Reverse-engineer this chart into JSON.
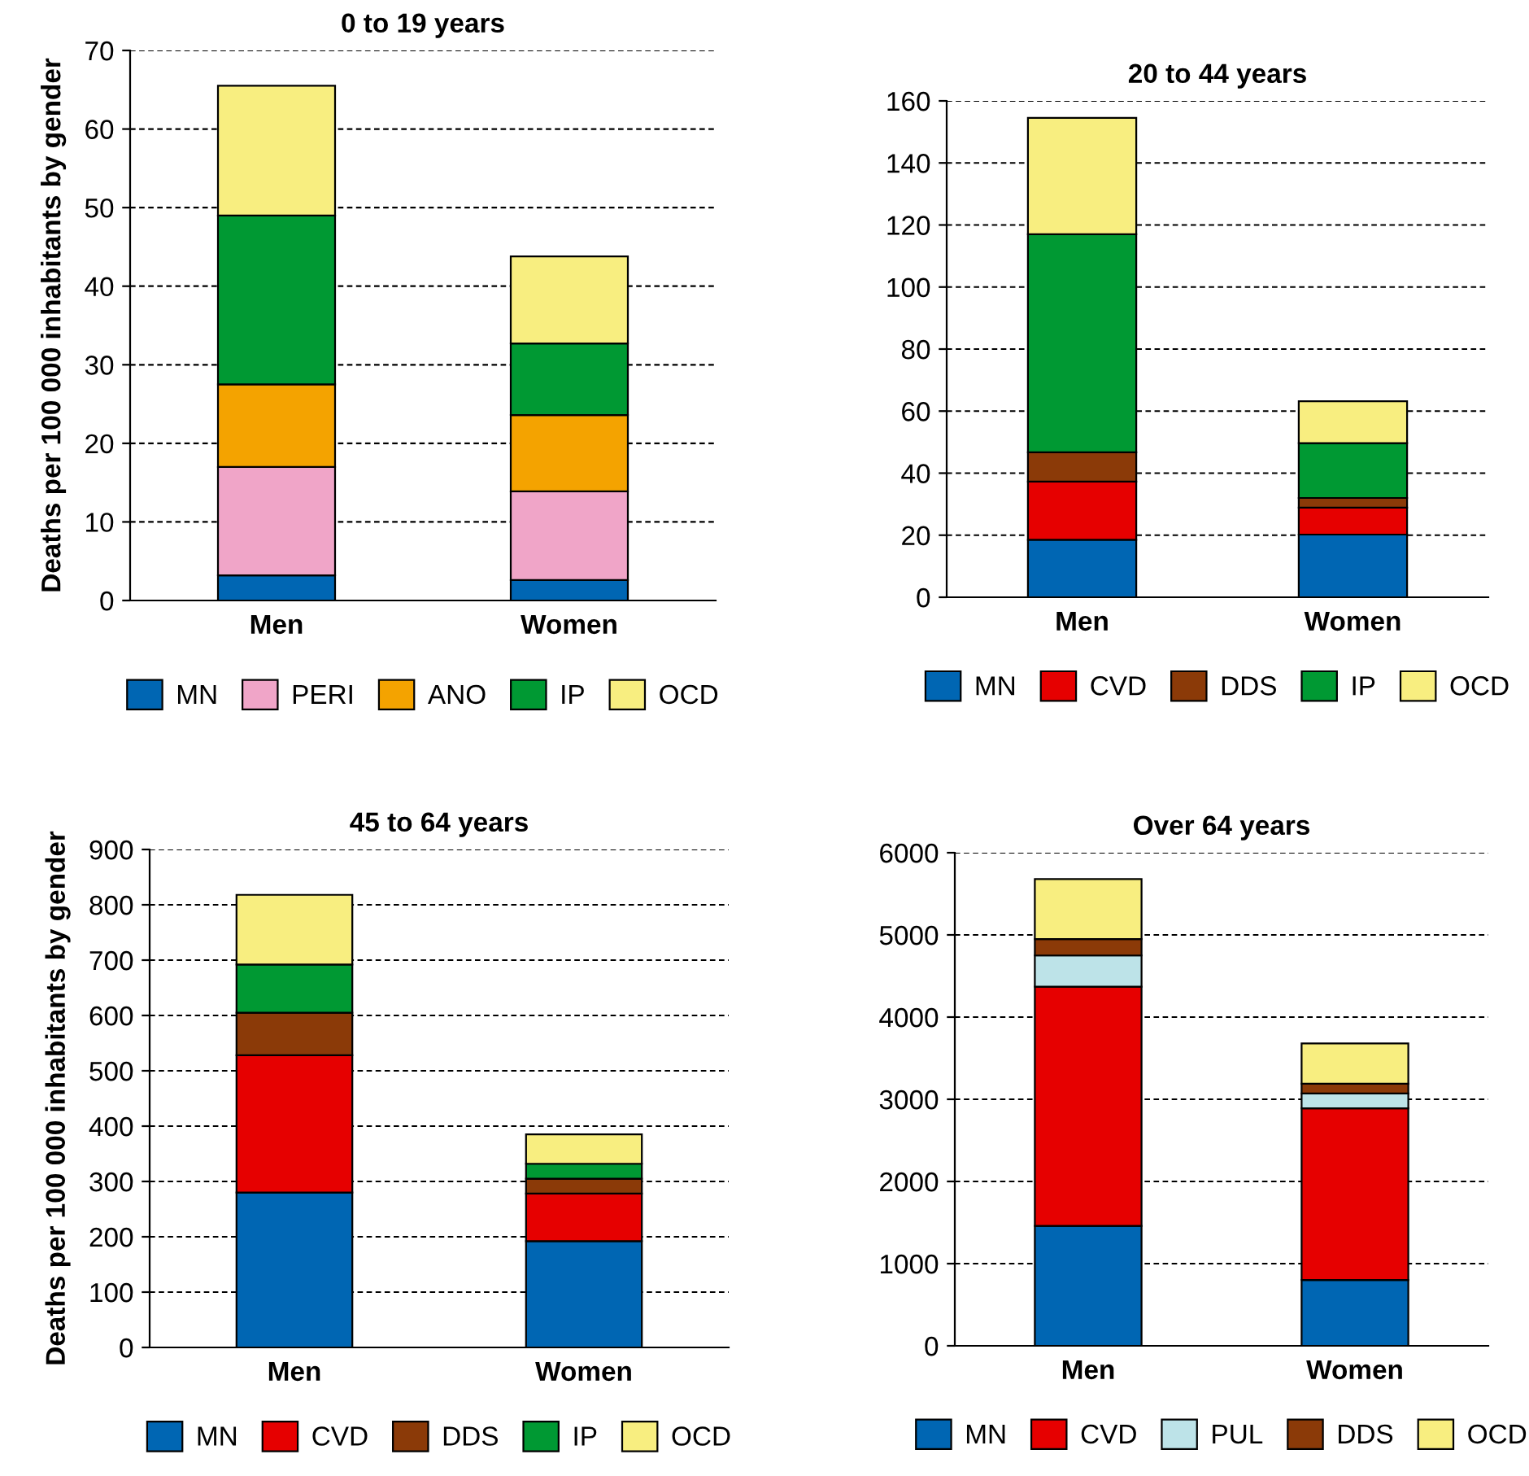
{
  "chart_data": [
    {
      "type": "bar",
      "stacked": true,
      "title": "0 to 19 years",
      "ylabel": "Deaths per 100 000 inhabitants by gender",
      "categories": [
        "Men",
        "Women"
      ],
      "ylim": [
        0,
        70
      ],
      "yticks": [
        0,
        10,
        20,
        30,
        40,
        50,
        60,
        70
      ],
      "grid": "y",
      "legend": "bottom",
      "series": [
        {
          "name": "MN",
          "color": "#0066b3",
          "values": [
            3.2,
            2.6
          ]
        },
        {
          "name": "PERI",
          "color": "#f0a5c8",
          "values": [
            13.8,
            11.3
          ]
        },
        {
          "name": "ANO",
          "color": "#f4a300",
          "values": [
            10.5,
            9.7
          ]
        },
        {
          "name": "IP",
          "color": "#009933",
          "values": [
            21.5,
            9.1
          ]
        },
        {
          "name": "OCD",
          "color": "#f8ee80",
          "values": [
            16.5,
            11.1
          ]
        }
      ]
    },
    {
      "type": "bar",
      "stacked": true,
      "title": "20 to 44 years",
      "categories": [
        "Men",
        "Women"
      ],
      "ylim": [
        0,
        160
      ],
      "yticks": [
        0,
        20,
        40,
        60,
        80,
        100,
        120,
        140,
        160
      ],
      "grid": "y",
      "legend": "bottom",
      "series": [
        {
          "name": "MN",
          "color": "#0066b3",
          "values": [
            18.5,
            20.2
          ]
        },
        {
          "name": "CVD",
          "color": "#e60000",
          "values": [
            18.8,
            8.7
          ]
        },
        {
          "name": "DDS",
          "color": "#8b3a08",
          "values": [
            9.4,
            3.1
          ]
        },
        {
          "name": "IP",
          "color": "#009933",
          "values": [
            70.3,
            17.7
          ]
        },
        {
          "name": "OCD",
          "color": "#f8ee80",
          "values": [
            37.5,
            13.5
          ]
        }
      ]
    },
    {
      "type": "bar",
      "stacked": true,
      "title": "45 to 64 years",
      "ylabel": "Deaths per 100 000 inhabitants by gender",
      "categories": [
        "Men",
        "Women"
      ],
      "ylim": [
        0,
        900
      ],
      "yticks": [
        0,
        100,
        200,
        300,
        400,
        500,
        600,
        700,
        800,
        900
      ],
      "grid": "y",
      "legend": "bottom",
      "series": [
        {
          "name": "MN",
          "color": "#0066b3",
          "values": [
            280,
            192
          ]
        },
        {
          "name": "CVD",
          "color": "#e60000",
          "values": [
            248,
            86
          ]
        },
        {
          "name": "DDS",
          "color": "#8b3a08",
          "values": [
            77,
            27
          ]
        },
        {
          "name": "IP",
          "color": "#009933",
          "values": [
            87,
            27
          ]
        },
        {
          "name": "OCD",
          "color": "#f8ee80",
          "values": [
            126,
            53
          ]
        }
      ]
    },
    {
      "type": "bar",
      "stacked": true,
      "title": "Over 64 years",
      "categories": [
        "Men",
        "Women"
      ],
      "ylim": [
        0,
        6000
      ],
      "yticks": [
        0,
        1000,
        2000,
        3000,
        4000,
        5000,
        6000
      ],
      "grid": "y",
      "legend": "bottom",
      "series": [
        {
          "name": "MN",
          "color": "#0066b3",
          "values": [
            1460,
            800
          ]
        },
        {
          "name": "CVD",
          "color": "#e60000",
          "values": [
            2910,
            2090
          ]
        },
        {
          "name": "PUL",
          "color": "#bde3e8",
          "values": [
            380,
            180
          ]
        },
        {
          "name": "DDS",
          "color": "#8b3a08",
          "values": [
            200,
            120
          ]
        },
        {
          "name": "OCD",
          "color": "#f8ee80",
          "values": [
            730,
            490
          ]
        }
      ]
    }
  ]
}
